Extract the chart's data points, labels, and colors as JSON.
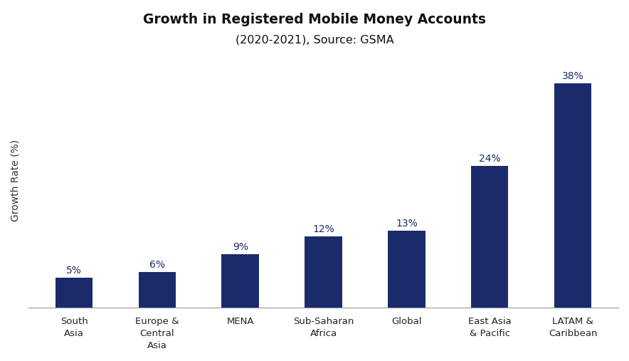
{
  "title_line1": "Growth in Registered Mobile Money Accounts",
  "title_line2": "(2020-2021), Source: GSMA",
  "categories": [
    "South\nAsia",
    "Europe &\nCentral\nAsia",
    "MENA",
    "Sub-Saharan\nAfrica",
    "Global",
    "East Asia\n& Pacific",
    "LATAM &\nCaribbean"
  ],
  "values": [
    5,
    6,
    9,
    12,
    13,
    24,
    38
  ],
  "bar_color": "#1b2a6b",
  "ylabel": "Growth Rate (%)",
  "ylim": [
    0,
    43
  ],
  "bar_width": 0.45,
  "background_color": "#ffffff",
  "title_fontsize": 13.5,
  "subtitle_fontsize": 11.5,
  "label_fontsize": 10,
  "tick_label_fontsize": 9.5,
  "value_label_fontsize": 10
}
